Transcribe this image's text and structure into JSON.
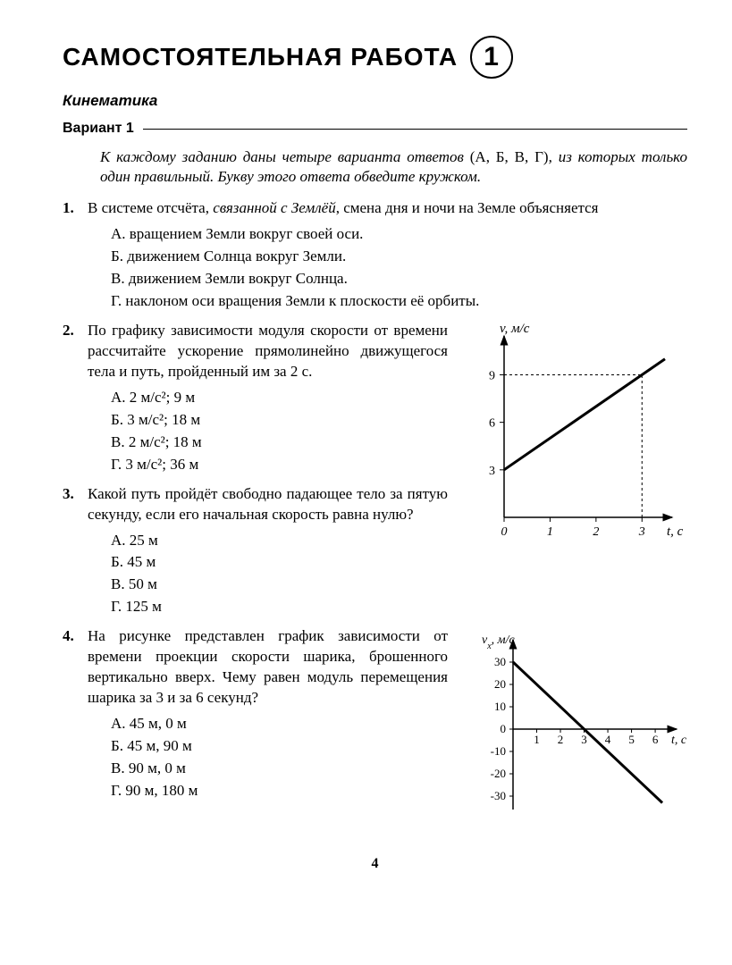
{
  "header": {
    "title": "САМОСТОЯТЕЛЬНАЯ РАБОТА",
    "number": "1"
  },
  "section": "Кинематика",
  "variant": "Вариант 1",
  "instructions_pre": "К каждому заданию даны четыре варианта ответов ",
  "instructions_letters": "(А, Б, В, Г)",
  "instructions_post": ", из которых только один правильный. Букву этого ответа обведите кружком.",
  "q1": {
    "num": "1.",
    "text_pre": "В системе отсчёта, ",
    "text_em": "связанной с Землёй",
    "text_post": ", смена дня и ночи на Земле объясняется",
    "A": "А. вращением Земли вокруг своей оси.",
    "B": "Б. движением Солнца вокруг Земли.",
    "C": "В. движением Земли вокруг Солнца.",
    "D": "Г. наклоном оси вращения Земли к плоскости её орбиты."
  },
  "q2": {
    "num": "2.",
    "text": "По графику зависимости модуля скорости от времени рассчитайте ускорение прямолинейно движущегося тела и путь, пройденный им за 2 с.",
    "A": "А. 2 м/с²; 9 м",
    "B": "Б. 3 м/с²; 18 м",
    "C": "В. 2 м/с²; 18 м",
    "D": "Г. 3 м/с²; 36 м"
  },
  "q3": {
    "num": "3.",
    "text": "Какой путь пройдёт свободно падающее тело за пятую секунду, если его начальная скорость равна нулю?",
    "A": "А. 25 м",
    "B": "Б. 45 м",
    "C": "В. 50 м",
    "D": "Г. 125 м"
  },
  "q4": {
    "num": "4.",
    "text": "На рисунке представлен график зависимости от времени проекции скорости шарика, брошенного вертикально вверх. Чему равен модуль перемещения шарика за 3 и за 6 секунд?",
    "A": "А. 45 м, 0 м",
    "B": "Б. 45 м, 90 м",
    "C": "В. 90 м, 0 м",
    "D": "Г. 90 м, 180 м"
  },
  "chart1": {
    "type": "line",
    "ylabel": "v, м/с",
    "xlabel": "t, с",
    "x_ticks": [
      0,
      1,
      2,
      3
    ],
    "y_ticks": [
      3,
      6,
      9
    ],
    "xlim": [
      0,
      3.5
    ],
    "ylim": [
      0,
      11
    ],
    "line": {
      "x": [
        0,
        3.5
      ],
      "y": [
        3,
        10
      ],
      "color": "#000000",
      "width": 3
    },
    "dashed_x": 3,
    "dashed_y": 9,
    "axis_color": "#000000",
    "tick_fontsize": 14,
    "label_fontsize": 15
  },
  "chart2": {
    "type": "line",
    "ylabel": "vₓ, м/с",
    "xlabel": "t, с",
    "x_ticks": [
      1,
      2,
      3,
      4,
      5,
      6
    ],
    "y_ticks": [
      -30,
      -20,
      -10,
      0,
      10,
      20,
      30
    ],
    "xlim": [
      0,
      6.6
    ],
    "ylim": [
      -36,
      36
    ],
    "line": {
      "x": [
        0,
        6.3
      ],
      "y": [
        30,
        -33
      ],
      "color": "#000000",
      "width": 3
    },
    "axis_color": "#000000",
    "tick_fontsize": 13,
    "label_fontsize": 14
  },
  "page_number": "4"
}
